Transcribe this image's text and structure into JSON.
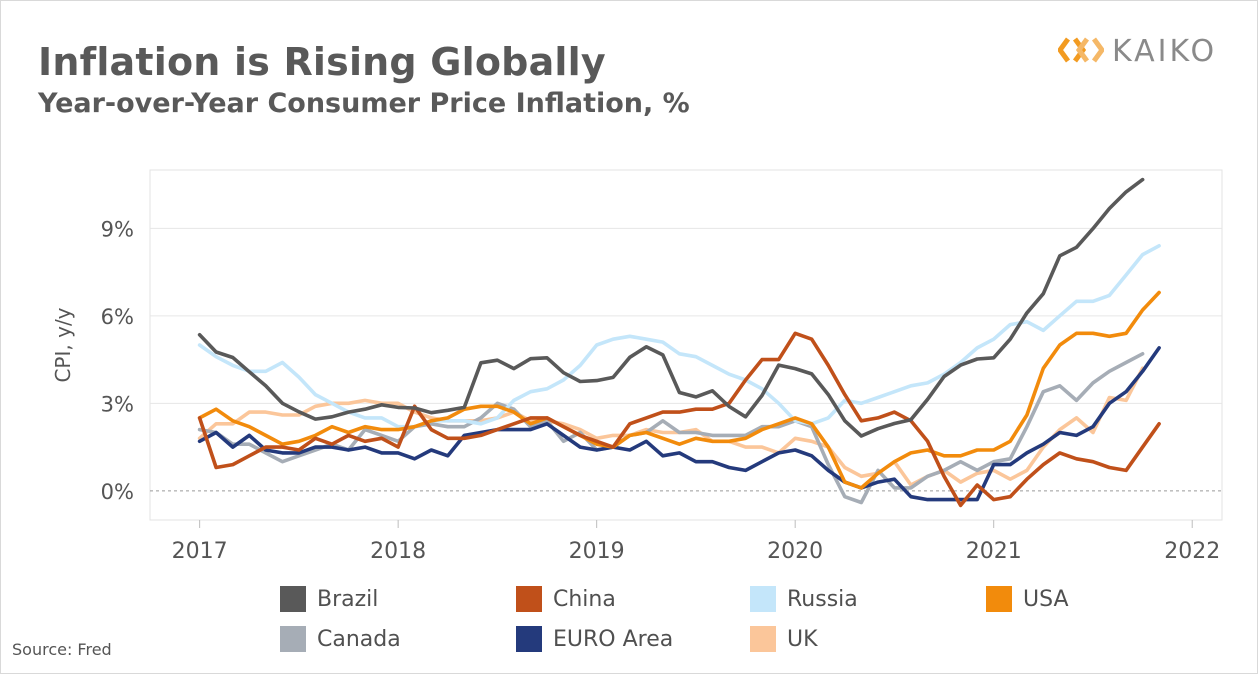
{
  "header": {
    "title": "Inflation is Rising Globally",
    "subtitle": "Year-over-Year Consumer Price Inflation, %"
  },
  "logo": {
    "text": "KAIKO",
    "icon": "kaiko-chevrons-icon",
    "color": "#f29b21"
  },
  "footer": {
    "source": "Source: Fred"
  },
  "chart_data": {
    "type": "line",
    "ylabel": "CPI, y/y",
    "xlabel": "",
    "xlim": [
      2016.75,
      2022.15
    ],
    "ylim": [
      -1.0,
      11.0
    ],
    "x_ticks": [
      {
        "value": 2017,
        "label": "2017"
      },
      {
        "value": 2018,
        "label": "2018"
      },
      {
        "value": 2019,
        "label": "2019"
      },
      {
        "value": 2020,
        "label": "2020"
      },
      {
        "value": 2021,
        "label": "2021"
      },
      {
        "value": 2022,
        "label": "2022"
      }
    ],
    "y_ticks": [
      {
        "value": 0,
        "label": "0%"
      },
      {
        "value": 3,
        "label": "3%"
      },
      {
        "value": 6,
        "label": "6%"
      },
      {
        "value": 9,
        "label": "9%"
      }
    ],
    "zero_line": "dotted",
    "grid": true,
    "legend_position": "bottom",
    "series": [
      {
        "name": "Brazil",
        "color": "#595959",
        "x": [
          2017.0,
          2017.083,
          2017.167,
          2017.25,
          2017.333,
          2017.417,
          2017.5,
          2017.583,
          2017.667,
          2017.75,
          2017.833,
          2017.917,
          2018.0,
          2018.083,
          2018.167,
          2018.25,
          2018.333,
          2018.417,
          2018.5,
          2018.583,
          2018.667,
          2018.75,
          2018.833,
          2018.917,
          2019.0,
          2019.083,
          2019.167,
          2019.25,
          2019.333,
          2019.417,
          2019.5,
          2019.583,
          2019.667,
          2019.75,
          2019.833,
          2019.917,
          2020.0,
          2020.083,
          2020.167,
          2020.25,
          2020.333,
          2020.417,
          2020.5,
          2020.583,
          2020.667,
          2020.75,
          2020.833,
          2020.917,
          2021.0,
          2021.083,
          2021.167,
          2021.25,
          2021.333,
          2021.417,
          2021.5,
          2021.583,
          2021.667,
          2021.75
        ],
        "y": [
          5.35,
          4.76,
          4.57,
          4.08,
          3.6,
          3.0,
          2.71,
          2.46,
          2.54,
          2.7,
          2.8,
          2.95,
          2.86,
          2.84,
          2.68,
          2.76,
          2.86,
          4.39,
          4.48,
          4.19,
          4.53,
          4.56,
          4.05,
          3.75,
          3.78,
          3.89,
          4.58,
          4.94,
          4.66,
          3.37,
          3.22,
          3.43,
          2.89,
          2.54,
          3.27,
          4.31,
          4.19,
          4.01,
          3.3,
          2.4,
          1.88,
          2.13,
          2.31,
          2.44,
          3.14,
          3.92,
          4.31,
          4.52,
          4.56,
          5.2,
          6.1,
          6.76,
          8.06,
          8.35,
          8.99,
          9.68,
          10.25,
          10.67
        ]
      },
      {
        "name": "China",
        "color": "#c0501a",
        "x": [
          2017.0,
          2017.083,
          2017.167,
          2017.25,
          2017.333,
          2017.417,
          2017.5,
          2017.583,
          2017.667,
          2017.75,
          2017.833,
          2017.917,
          2018.0,
          2018.083,
          2018.167,
          2018.25,
          2018.333,
          2018.417,
          2018.5,
          2018.583,
          2018.667,
          2018.75,
          2018.833,
          2018.917,
          2019.0,
          2019.083,
          2019.167,
          2019.25,
          2019.333,
          2019.417,
          2019.5,
          2019.583,
          2019.667,
          2019.75,
          2019.833,
          2019.917,
          2020.0,
          2020.083,
          2020.167,
          2020.25,
          2020.333,
          2020.417,
          2020.5,
          2020.583,
          2020.667,
          2020.75,
          2020.833,
          2020.917,
          2021.0,
          2021.083,
          2021.167,
          2021.25,
          2021.333,
          2021.417,
          2021.5,
          2021.583,
          2021.667,
          2021.75,
          2021.833
        ],
        "y": [
          2.5,
          0.8,
          0.9,
          1.2,
          1.5,
          1.5,
          1.4,
          1.8,
          1.6,
          1.9,
          1.7,
          1.8,
          1.5,
          2.9,
          2.1,
          1.8,
          1.8,
          1.9,
          2.1,
          2.3,
          2.5,
          2.5,
          2.2,
          1.9,
          1.7,
          1.5,
          2.3,
          2.5,
          2.7,
          2.7,
          2.8,
          2.8,
          3.0,
          3.8,
          4.5,
          4.5,
          5.4,
          5.2,
          4.3,
          3.3,
          2.4,
          2.5,
          2.7,
          2.4,
          1.7,
          0.5,
          -0.5,
          0.2,
          -0.3,
          -0.2,
          0.4,
          0.9,
          1.3,
          1.1,
          1.0,
          0.8,
          0.7,
          1.5,
          2.3
        ]
      },
      {
        "name": "Russia",
        "color": "#c4e6fa",
        "x": [
          2017.0,
          2017.083,
          2017.167,
          2017.25,
          2017.333,
          2017.417,
          2017.5,
          2017.583,
          2017.667,
          2017.75,
          2017.833,
          2017.917,
          2018.0,
          2018.083,
          2018.167,
          2018.25,
          2018.333,
          2018.417,
          2018.5,
          2018.583,
          2018.667,
          2018.75,
          2018.833,
          2018.917,
          2019.0,
          2019.083,
          2019.167,
          2019.25,
          2019.333,
          2019.417,
          2019.5,
          2019.583,
          2019.667,
          2019.75,
          2019.833,
          2019.917,
          2020.0,
          2020.083,
          2020.167,
          2020.25,
          2020.333,
          2020.417,
          2020.5,
          2020.583,
          2020.667,
          2020.75,
          2020.833,
          2020.917,
          2021.0,
          2021.083,
          2021.167,
          2021.25,
          2021.333,
          2021.417,
          2021.5,
          2021.583,
          2021.667,
          2021.75,
          2021.833
        ],
        "y": [
          5.0,
          4.6,
          4.3,
          4.1,
          4.1,
          4.4,
          3.9,
          3.3,
          3.0,
          2.7,
          2.5,
          2.5,
          2.2,
          2.2,
          2.4,
          2.4,
          2.4,
          2.3,
          2.5,
          3.1,
          3.4,
          3.5,
          3.8,
          4.3,
          5.0,
          5.2,
          5.3,
          5.2,
          5.1,
          4.7,
          4.6,
          4.3,
          4.0,
          3.8,
          3.5,
          3.0,
          2.4,
          2.3,
          2.5,
          3.1,
          3.0,
          3.2,
          3.4,
          3.6,
          3.7,
          4.0,
          4.4,
          4.9,
          5.2,
          5.7,
          5.8,
          5.5,
          6.0,
          6.5,
          6.5,
          6.7,
          7.4,
          8.1,
          8.4
        ]
      },
      {
        "name": "USA",
        "color": "#f28b0c",
        "x": [
          2017.0,
          2017.083,
          2017.167,
          2017.25,
          2017.333,
          2017.417,
          2017.5,
          2017.583,
          2017.667,
          2017.75,
          2017.833,
          2017.917,
          2018.0,
          2018.083,
          2018.167,
          2018.25,
          2018.333,
          2018.417,
          2018.5,
          2018.583,
          2018.667,
          2018.75,
          2018.833,
          2018.917,
          2019.0,
          2019.083,
          2019.167,
          2019.25,
          2019.333,
          2019.417,
          2019.5,
          2019.583,
          2019.667,
          2019.75,
          2019.833,
          2019.917,
          2020.0,
          2020.083,
          2020.167,
          2020.25,
          2020.333,
          2020.417,
          2020.5,
          2020.583,
          2020.667,
          2020.75,
          2020.833,
          2020.917,
          2021.0,
          2021.083,
          2021.167,
          2021.25,
          2021.333,
          2021.417,
          2021.5,
          2021.583,
          2021.667,
          2021.75,
          2021.833
        ],
        "y": [
          2.5,
          2.8,
          2.4,
          2.2,
          1.9,
          1.6,
          1.7,
          1.9,
          2.2,
          2.0,
          2.2,
          2.1,
          2.1,
          2.2,
          2.4,
          2.5,
          2.8,
          2.9,
          2.9,
          2.7,
          2.3,
          2.5,
          2.2,
          1.9,
          1.6,
          1.5,
          1.9,
          2.0,
          1.8,
          1.6,
          1.8,
          1.7,
          1.7,
          1.8,
          2.1,
          2.3,
          2.5,
          2.3,
          1.5,
          0.3,
          0.1,
          0.6,
          1.0,
          1.3,
          1.4,
          1.2,
          1.2,
          1.4,
          1.4,
          1.7,
          2.6,
          4.2,
          5.0,
          5.4,
          5.4,
          5.3,
          5.4,
          6.2,
          6.8
        ]
      },
      {
        "name": "Canada",
        "color": "#a6adb6",
        "x": [
          2017.0,
          2017.083,
          2017.167,
          2017.25,
          2017.333,
          2017.417,
          2017.5,
          2017.583,
          2017.667,
          2017.75,
          2017.833,
          2017.917,
          2018.0,
          2018.083,
          2018.167,
          2018.25,
          2018.333,
          2018.417,
          2018.5,
          2018.583,
          2018.667,
          2018.75,
          2018.833,
          2018.917,
          2019.0,
          2019.083,
          2019.167,
          2019.25,
          2019.333,
          2019.417,
          2019.5,
          2019.583,
          2019.667,
          2019.75,
          2019.833,
          2019.917,
          2020.0,
          2020.083,
          2020.167,
          2020.25,
          2020.333,
          2020.417,
          2020.5,
          2020.583,
          2020.667,
          2020.75,
          2020.833,
          2020.917,
          2021.0,
          2021.083,
          2021.167,
          2021.25,
          2021.333,
          2021.417,
          2021.5,
          2021.583,
          2021.667,
          2021.75
        ],
        "y": [
          2.1,
          2.0,
          1.6,
          1.6,
          1.3,
          1.0,
          1.2,
          1.4,
          1.6,
          1.4,
          2.1,
          1.9,
          1.7,
          2.2,
          2.3,
          2.2,
          2.2,
          2.5,
          3.0,
          2.8,
          2.2,
          2.4,
          1.7,
          2.0,
          1.4,
          1.5,
          1.9,
          2.0,
          2.4,
          2.0,
          2.0,
          1.9,
          1.9,
          1.9,
          2.2,
          2.2,
          2.4,
          2.2,
          0.9,
          -0.2,
          -0.4,
          0.7,
          0.1,
          0.1,
          0.5,
          0.7,
          1.0,
          0.7,
          1.0,
          1.1,
          2.2,
          3.4,
          3.6,
          3.1,
          3.7,
          4.1,
          4.4,
          4.7
        ]
      },
      {
        "name": "EURO Area",
        "color": "#243a7c",
        "x": [
          2017.0,
          2017.083,
          2017.167,
          2017.25,
          2017.333,
          2017.417,
          2017.5,
          2017.583,
          2017.667,
          2017.75,
          2017.833,
          2017.917,
          2018.0,
          2018.083,
          2018.167,
          2018.25,
          2018.333,
          2018.417,
          2018.5,
          2018.583,
          2018.667,
          2018.75,
          2018.833,
          2018.917,
          2019.0,
          2019.083,
          2019.167,
          2019.25,
          2019.333,
          2019.417,
          2019.5,
          2019.583,
          2019.667,
          2019.75,
          2019.833,
          2019.917,
          2020.0,
          2020.083,
          2020.167,
          2020.25,
          2020.333,
          2020.417,
          2020.5,
          2020.583,
          2020.667,
          2020.75,
          2020.833,
          2020.917,
          2021.0,
          2021.083,
          2021.167,
          2021.25,
          2021.333,
          2021.417,
          2021.5,
          2021.583,
          2021.667,
          2021.75,
          2021.833
        ],
        "y": [
          1.7,
          2.0,
          1.5,
          1.9,
          1.4,
          1.3,
          1.3,
          1.5,
          1.5,
          1.4,
          1.5,
          1.3,
          1.3,
          1.1,
          1.4,
          1.2,
          1.9,
          2.0,
          2.1,
          2.1,
          2.1,
          2.3,
          1.9,
          1.5,
          1.4,
          1.5,
          1.4,
          1.7,
          1.2,
          1.3,
          1.0,
          1.0,
          0.8,
          0.7,
          1.0,
          1.3,
          1.4,
          1.2,
          0.7,
          0.3,
          0.1,
          0.3,
          0.4,
          -0.2,
          -0.3,
          -0.3,
          -0.3,
          -0.3,
          0.9,
          0.9,
          1.3,
          1.6,
          2.0,
          1.9,
          2.2,
          3.0,
          3.4,
          4.1,
          4.9
        ]
      },
      {
        "name": "UK",
        "color": "#fbc69a",
        "x": [
          2017.0,
          2017.083,
          2017.167,
          2017.25,
          2017.333,
          2017.417,
          2017.5,
          2017.583,
          2017.667,
          2017.75,
          2017.833,
          2017.917,
          2018.0,
          2018.083,
          2018.167,
          2018.25,
          2018.333,
          2018.417,
          2018.5,
          2018.583,
          2018.667,
          2018.75,
          2018.833,
          2018.917,
          2019.0,
          2019.083,
          2019.167,
          2019.25,
          2019.333,
          2019.417,
          2019.5,
          2019.583,
          2019.667,
          2019.75,
          2019.833,
          2019.917,
          2020.0,
          2020.083,
          2020.167,
          2020.25,
          2020.333,
          2020.417,
          2020.5,
          2020.583,
          2020.667,
          2020.75,
          2020.833,
          2020.917,
          2021.0,
          2021.083,
          2021.167,
          2021.25,
          2021.333,
          2021.417,
          2021.5,
          2021.583,
          2021.667,
          2021.75
        ],
        "y": [
          1.8,
          2.3,
          2.3,
          2.7,
          2.7,
          2.6,
          2.6,
          2.9,
          3.0,
          3.0,
          3.1,
          3.0,
          3.0,
          2.7,
          2.5,
          2.4,
          2.4,
          2.4,
          2.5,
          2.7,
          2.4,
          2.4,
          2.3,
          2.1,
          1.8,
          1.9,
          1.9,
          2.1,
          2.0,
          2.0,
          2.1,
          1.7,
          1.7,
          1.5,
          1.5,
          1.3,
          1.8,
          1.7,
          1.5,
          0.8,
          0.5,
          0.6,
          1.0,
          0.2,
          0.5,
          0.7,
          0.3,
          0.6,
          0.7,
          0.4,
          0.7,
          1.5,
          2.1,
          2.5,
          2.0,
          3.2,
          3.1,
          4.2
        ]
      }
    ]
  }
}
